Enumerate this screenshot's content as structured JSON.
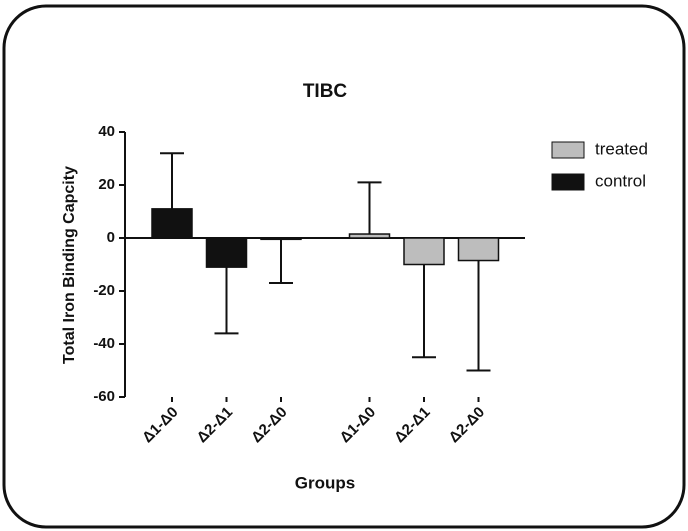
{
  "chart_data": {
    "type": "bar",
    "title": "TIBC",
    "x_label": "Groups",
    "y_label": "Total Iron Binding Capcity",
    "categories": [
      "Δ1-Δ0",
      "Δ2-Δ1",
      "Δ2-Δ0",
      "Δ1-Δ0",
      "Δ2-Δ1",
      "Δ2-Δ0"
    ],
    "series": [
      {
        "name": "treated",
        "color": "#bdbdbd",
        "values": [
          null,
          null,
          null,
          1.5,
          -10,
          -8.5
        ],
        "errors": [
          null,
          null,
          null,
          19.5,
          35,
          41.5
        ]
      },
      {
        "name": "control",
        "color": "#111111",
        "values": [
          11,
          -11,
          -0.5,
          null,
          null,
          null
        ],
        "errors": [
          21,
          25,
          16.5,
          null,
          null,
          null
        ]
      }
    ],
    "ylim": [
      -60,
      40
    ],
    "yticks": [
      -60,
      -40,
      -20,
      0,
      20,
      40
    ],
    "grid": false,
    "legend": "right"
  }
}
